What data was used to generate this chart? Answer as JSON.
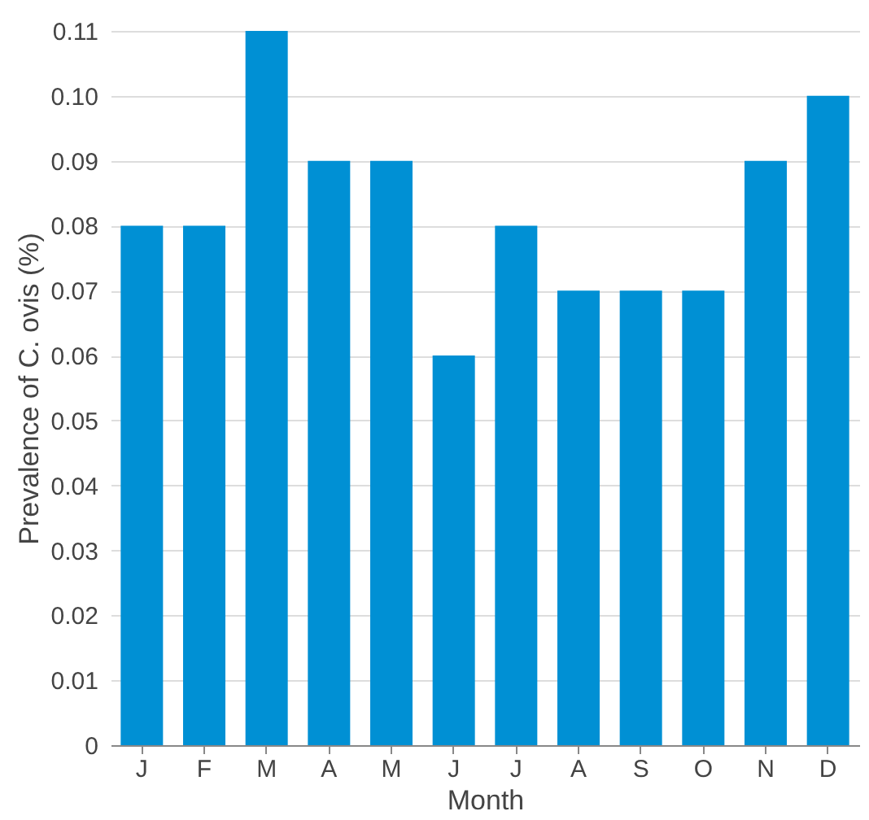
{
  "chart_data": {
    "type": "bar",
    "xlabel": "Month",
    "ylabel": "Prevalence of C. ovis (%)",
    "categories": [
      "J",
      "F",
      "M",
      "A",
      "M",
      "J",
      "J",
      "A",
      "S",
      "O",
      "N",
      "D"
    ],
    "values": [
      0.08,
      0.08,
      0.11,
      0.09,
      0.09,
      0.06,
      0.08,
      0.07,
      0.07,
      0.07,
      0.09,
      0.1
    ],
    "color": "#0090d4",
    "ylim": [
      0,
      0.11
    ],
    "yticks": [
      {
        "value": 0,
        "label": "0"
      },
      {
        "value": 0.01,
        "label": "0.01"
      },
      {
        "value": 0.02,
        "label": "0.02"
      },
      {
        "value": 0.03,
        "label": "0.03"
      },
      {
        "value": 0.04,
        "label": "0.04"
      },
      {
        "value": 0.05,
        "label": "0.05"
      },
      {
        "value": 0.06,
        "label": "0.06"
      },
      {
        "value": 0.07,
        "label": "0.07"
      },
      {
        "value": 0.08,
        "label": "0.08"
      },
      {
        "value": 0.09,
        "label": "0.09"
      },
      {
        "value": 0.1,
        "label": "0.10"
      },
      {
        "value": 0.11,
        "label": "0.11"
      }
    ],
    "grid": "y"
  }
}
